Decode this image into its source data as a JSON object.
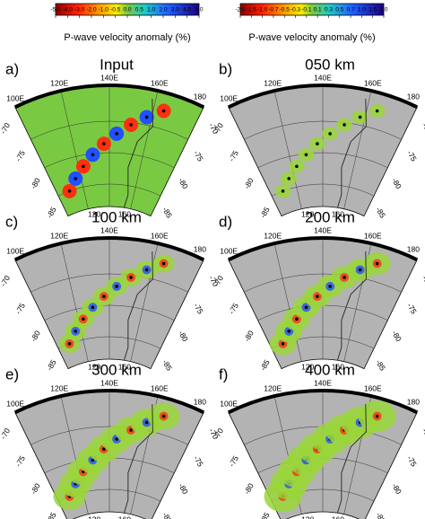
{
  "colorbars": [
    {
      "ticks": [
        "-5.0",
        "-4.0",
        "-3.0",
        "-2.0",
        "-1.0",
        "-0.5",
        "0.0",
        "0.5",
        "1.0",
        "2.0",
        "3.0",
        "4.0",
        "5.0"
      ],
      "label": "P-wave velocity anomaly (%)"
    },
    {
      "ticks": [
        "-2.0",
        "-1.5",
        "-1.0",
        "-0.7",
        "-0.5",
        "-0.3",
        "-0.1",
        "0.1",
        "0.3",
        "0.5",
        "0.7",
        "1.0",
        "1.5",
        "2.0"
      ],
      "label": "P-wave velocity anomaly (%)"
    }
  ],
  "panels": [
    {
      "letter": "a)",
      "title": "Input",
      "lon_labels": [
        "100E",
        "120E",
        "140E",
        "160E",
        "180"
      ],
      "lat_left": [
        "-70",
        "-75",
        "-80",
        "-85"
      ],
      "lat_right": [
        "-70",
        "-75",
        "-80",
        "-85"
      ],
      "bottom": [
        "120",
        "160"
      ]
    },
    {
      "letter": "b)",
      "title": "050 km",
      "lon_labels": [
        "100E",
        "120E",
        "140E",
        "160E",
        "180"
      ],
      "lat_left": [
        "-70",
        "-75",
        "-80",
        "-85"
      ],
      "lat_right": [
        "-70",
        "-75",
        "-80",
        "-85"
      ],
      "bottom": [
        "120",
        "160"
      ]
    },
    {
      "letter": "c)",
      "title": "100 km",
      "lon_labels": [
        "100E",
        "120E",
        "140E",
        "160E",
        "180"
      ],
      "lat_left": [
        "-70",
        "-75",
        "-80",
        "-85"
      ],
      "lat_right": [
        "-70",
        "-75",
        "-80",
        "-85"
      ],
      "bottom": [
        "120",
        "160"
      ]
    },
    {
      "letter": "d)",
      "title": "200 km",
      "lon_labels": [
        "100E",
        "120E",
        "140E",
        "160E",
        "180"
      ],
      "lat_left": [
        "-70",
        "-75",
        "-80",
        "-85"
      ],
      "lat_right": [
        "-70",
        "-75",
        "-80",
        "-85"
      ],
      "bottom": [
        "120",
        "160"
      ]
    },
    {
      "letter": "e)",
      "title": "300 km",
      "lon_labels": [
        "100E",
        "120E",
        "140E",
        "160E",
        "180"
      ],
      "lat_left": [
        "-70",
        "-75",
        "-80",
        "-85"
      ],
      "lat_right": [
        "-70",
        "-75",
        "-80",
        "-85"
      ],
      "bottom": [
        "120",
        "160"
      ]
    },
    {
      "letter": "f)",
      "title": "400 km",
      "lon_labels": [
        "100E",
        "120E",
        "140E",
        "160E",
        "180"
      ],
      "lat_left": [
        "-70",
        "-75",
        "-80",
        "-85"
      ],
      "lat_right": [
        "-70",
        "-75",
        "-80",
        "-85"
      ],
      "bottom": [
        "120",
        "160"
      ]
    }
  ]
}
